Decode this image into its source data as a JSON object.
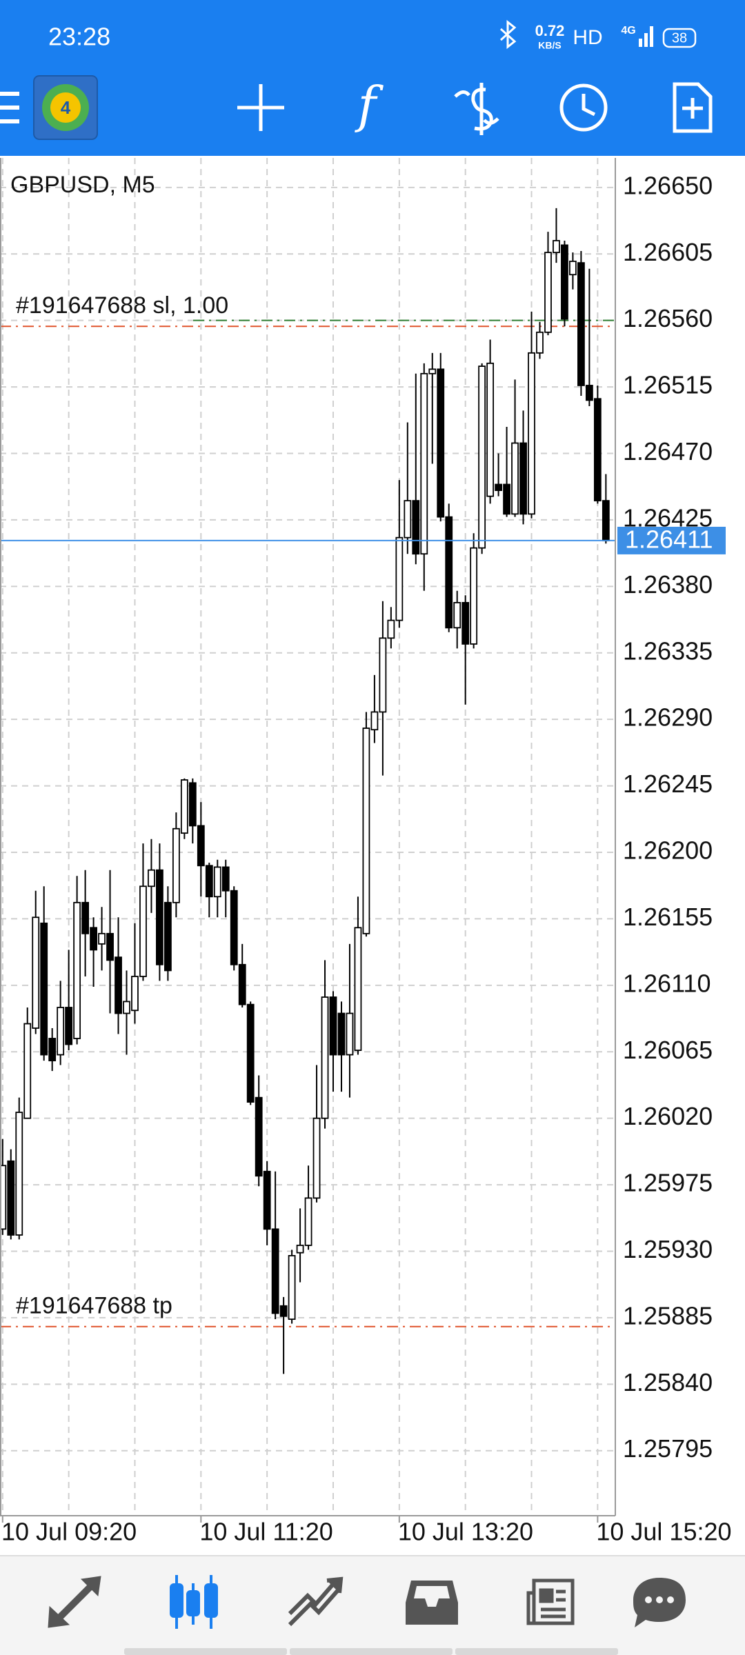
{
  "status_bar": {
    "time": "23:28",
    "speed": "0.72",
    "speed_unit": "KB/S",
    "hd": "HD",
    "network": "4G",
    "battery": "38"
  },
  "chart_data": {
    "type": "candlestick",
    "title": "GBPUSD, M5",
    "x": [
      "10 Jul 09:20",
      "10 Jul 09:25",
      "10 Jul 09:30",
      "10 Jul 09:35",
      "10 Jul 09:40",
      "10 Jul 09:45",
      "10 Jul 09:50",
      "10 Jul 09:55",
      "10 Jul 10:00",
      "10 Jul 10:05",
      "10 Jul 10:10",
      "10 Jul 10:15",
      "10 Jul 10:20",
      "10 Jul 10:25",
      "10 Jul 10:30",
      "10 Jul 10:35",
      "10 Jul 10:40",
      "10 Jul 10:45",
      "10 Jul 10:50",
      "10 Jul 10:55",
      "10 Jul 11:00",
      "10 Jul 11:05",
      "10 Jul 11:10",
      "10 Jul 11:15",
      "10 Jul 11:20",
      "10 Jul 11:25",
      "10 Jul 11:30",
      "10 Jul 11:35",
      "10 Jul 11:40",
      "10 Jul 11:45",
      "10 Jul 11:50",
      "10 Jul 11:55",
      "10 Jul 12:00",
      "10 Jul 12:05",
      "10 Jul 12:10",
      "10 Jul 12:15",
      "10 Jul 12:20",
      "10 Jul 12:25",
      "10 Jul 12:30",
      "10 Jul 12:35",
      "10 Jul 12:40",
      "10 Jul 12:45",
      "10 Jul 12:50",
      "10 Jul 12:55",
      "10 Jul 13:00",
      "10 Jul 13:05",
      "10 Jul 13:10",
      "10 Jul 13:15",
      "10 Jul 13:20",
      "10 Jul 13:25",
      "10 Jul 13:30",
      "10 Jul 13:35",
      "10 Jul 13:40",
      "10 Jul 13:45",
      "10 Jul 13:50",
      "10 Jul 13:55",
      "10 Jul 14:00",
      "10 Jul 14:05",
      "10 Jul 14:10",
      "10 Jul 14:15",
      "10 Jul 14:20",
      "10 Jul 14:25",
      "10 Jul 14:30",
      "10 Jul 14:35",
      "10 Jul 14:40",
      "10 Jul 14:45",
      "10 Jul 14:50",
      "10 Jul 14:55",
      "10 Jul 15:00",
      "10 Jul 15:05",
      "10 Jul 15:10",
      "10 Jul 15:15",
      "10 Jul 15:20",
      "10 Jul 15:25"
    ],
    "open": [
      1.25945,
      1.25991,
      1.25941,
      1.2602,
      1.26081,
      1.26152,
      1.26074,
      1.26063,
      1.26095,
      1.26074,
      1.26166,
      1.26149,
      1.26138,
      1.26145,
      1.26129,
      1.26091,
      1.26093,
      1.26116,
      1.26177,
      1.26188,
      1.26166,
      1.26166,
      1.26213,
      1.26247,
      1.26218,
      1.26191,
      1.2617,
      1.2619,
      1.26174,
      1.26124,
      1.26097,
      1.26034,
      1.25984,
      1.25945,
      1.25893,
      1.25884,
      1.25929,
      1.25934,
      1.25966,
      1.2602,
      1.26102,
      1.26091,
      1.26063,
      1.26066,
      1.26145,
      1.26283,
      1.26295,
      1.26345,
      1.26357,
      1.26413,
      1.26438,
      1.26402,
      1.26524,
      1.26527,
      1.26427,
      1.26352,
      1.26369,
      1.26341,
      1.26406,
      1.26441,
      1.26449,
      1.26449,
      1.26429,
      1.26477,
      1.26429,
      1.26538,
      1.26552,
      1.26606,
      1.26611,
      1.26591,
      1.26599,
      1.26516,
      1.26507,
      1.26438
    ],
    "high": [
      1.26006,
      1.25999,
      1.26034,
      1.26095,
      1.26174,
      1.26177,
      1.26081,
      1.26113,
      1.26134,
      1.26184,
      1.26188,
      1.26156,
      1.26163,
      1.26188,
      1.26156,
      1.2612,
      1.26152,
      1.26206,
      1.26209,
      1.26206,
      1.26177,
      1.26227,
      1.2625,
      1.2625,
      1.26234,
      1.26193,
      1.26195,
      1.26195,
      1.26177,
      1.26138,
      1.26099,
      1.26049,
      1.25991,
      1.25984,
      1.25899,
      1.25931,
      1.25959,
      1.25988,
      1.26056,
      1.26127,
      1.26106,
      1.26099,
      1.26138,
      1.2617,
      1.26295,
      1.2632,
      1.2637,
      1.26366,
      1.26452,
      1.26491,
      1.26524,
      1.26531,
      1.26538,
      1.26538,
      1.26436,
      1.26377,
      1.26374,
      1.26416,
      1.26531,
      1.26547,
      1.2647,
      1.26488,
      1.2652,
      1.26499,
      1.26566,
      1.26559,
      1.2662,
      1.26636,
      1.26614,
      1.26606,
      1.26607,
      1.26595,
      1.26516,
      1.26456
    ],
    "low": [
      1.25941,
      1.25938,
      1.25938,
      1.2602,
      1.26077,
      1.26059,
      1.26052,
      1.26056,
      1.26066,
      1.2607,
      1.26116,
      1.26109,
      1.2612,
      1.26091,
      1.26077,
      1.26063,
      1.26084,
      1.26113,
      1.26159,
      1.26113,
      1.26113,
      1.26156,
      1.26209,
      1.26206,
      1.2617,
      1.26156,
      1.26156,
      1.26156,
      1.2612,
      1.26095,
      1.26029,
      1.25974,
      1.25934,
      1.25884,
      1.25847,
      1.25881,
      1.25909,
      1.25931,
      1.25963,
      1.26013,
      1.26038,
      1.26038,
      1.26034,
      1.26063,
      1.26143,
      1.26274,
      1.26252,
      1.26338,
      1.26352,
      1.26402,
      1.26395,
      1.26377,
      1.26463,
      1.26424,
      1.26349,
      1.26338,
      1.263,
      1.26338,
      1.26402,
      1.26436,
      1.26441,
      1.26427,
      1.26427,
      1.26422,
      1.26426,
      1.26534,
      1.2655,
      1.26599,
      1.26556,
      1.26581,
      1.26509,
      1.26502,
      1.26436,
      1.26409
    ],
    "close": [
      1.25988,
      1.25941,
      1.26024,
      1.26084,
      1.26156,
      1.26063,
      1.26059,
      1.26095,
      1.2607,
      1.26166,
      1.26145,
      1.26134,
      1.26145,
      1.26127,
      1.26091,
      1.26099,
      1.26116,
      1.26177,
      1.26188,
      1.26124,
      1.2612,
      1.26216,
      1.26249,
      1.26218,
      1.26191,
      1.2617,
      1.2619,
      1.26174,
      1.26124,
      1.26097,
      1.26031,
      1.25981,
      1.25945,
      1.25888,
      1.25886,
      1.25927,
      1.25934,
      1.25966,
      1.2602,
      1.26102,
      1.26063,
      1.26063,
      1.26091,
      1.26149,
      1.26284,
      1.26295,
      1.26345,
      1.26357,
      1.26413,
      1.26438,
      1.26402,
      1.26524,
      1.26527,
      1.26427,
      1.26352,
      1.26369,
      1.26341,
      1.26406,
      1.26529,
      1.26531,
      1.26445,
      1.26429,
      1.26477,
      1.26429,
      1.26538,
      1.26552,
      1.26606,
      1.26614,
      1.26561,
      1.266,
      1.26516,
      1.26506,
      1.26438,
      1.26411
    ],
    "up_color": "#ffffff",
    "down_color": "#000000",
    "outline_color": "#000000",
    "ylim": [
      1.25751,
      1.2667
    ],
    "yticks": [
      {
        "value": 1.2665,
        "label": "1.26650"
      },
      1.26605,
      {
        "value": 1.2656,
        "label": "1.26560"
      },
      1.26515,
      {
        "value": 1.2647,
        "label": "1.26470"
      },
      1.26425,
      {
        "value": 1.2638,
        "label": "1.26380"
      },
      1.26335,
      {
        "value": 1.2629,
        "label": "1.26290"
      },
      1.26245,
      {
        "value": 1.262,
        "label": "1.26200"
      },
      1.26155,
      {
        "value": 1.2611,
        "label": "1.26110"
      },
      1.26065,
      {
        "value": 1.2602,
        "label": "1.26020"
      },
      1.25975,
      {
        "value": 1.2593,
        "label": "1.25930"
      },
      1.25885,
      {
        "value": 1.2584,
        "label": "1.25840"
      },
      1.25795
    ],
    "xticks": [
      "10 Jul 09:20",
      "10 Jul 11:20",
      "10 Jul 13:20",
      "10 Jul 15:20"
    ],
    "grid": true,
    "levels": [
      {
        "value": 1.2656,
        "color": "#2e7d32",
        "style": "dash-dot"
      },
      {
        "value": 1.26556,
        "color": "#e0522a",
        "style": "dash-dot",
        "label": "#191647688 sl, 1.00"
      },
      {
        "value": 1.25879,
        "color": "#e0522a",
        "style": "dash-dot",
        "label": "#191647688 tp"
      }
    ],
    "current_price": {
      "value": 1.26411,
      "color": "#3d8fe6"
    }
  }
}
